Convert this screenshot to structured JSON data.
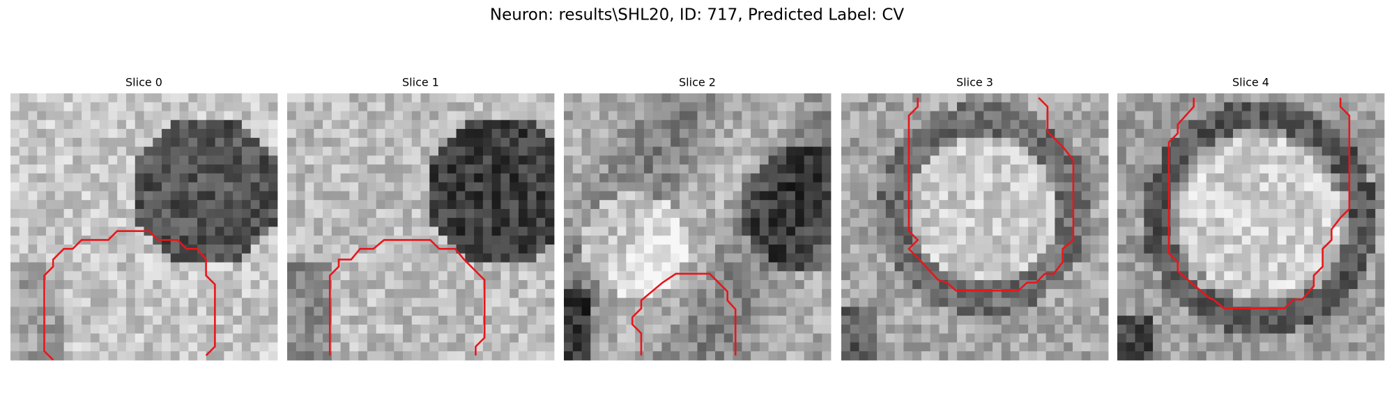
{
  "title": "Neuron: results\\SHL20, ID: 717, Predicted Label: CV",
  "panels": [
    {
      "title": "Slice 0"
    },
    {
      "title": "Slice 1"
    },
    {
      "title": "Slice 2"
    },
    {
      "title": "Slice 3"
    },
    {
      "title": "Slice 4"
    }
  ]
}
